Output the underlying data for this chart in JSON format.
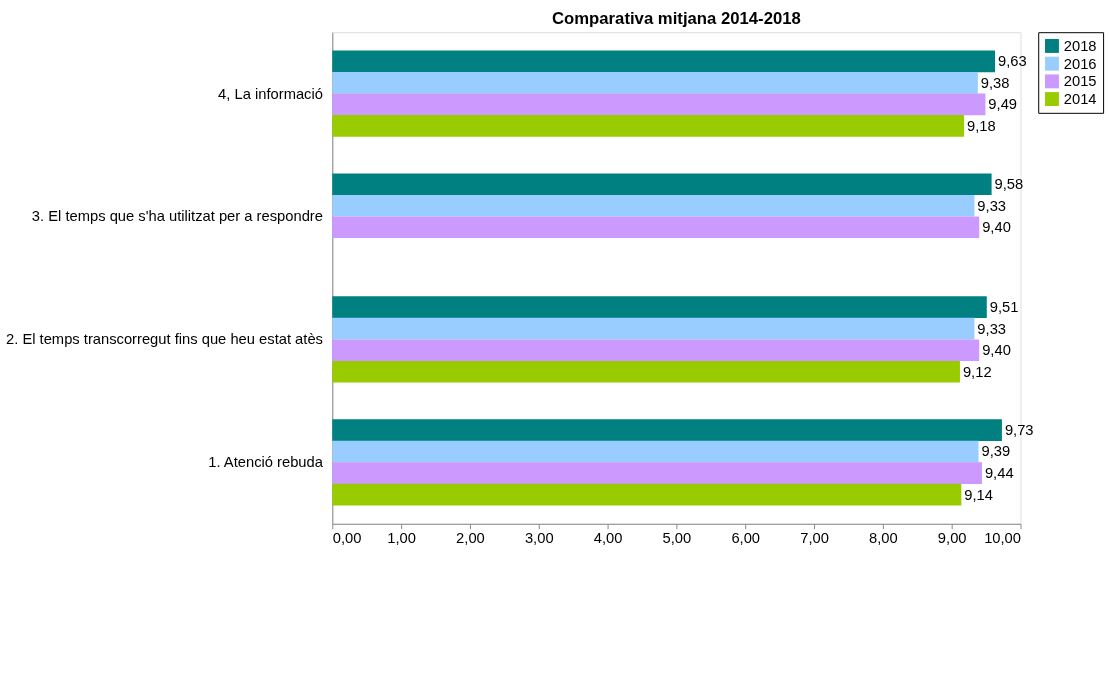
{
  "chart_data": {
    "type": "bar",
    "orientation": "horizontal",
    "title": "Comparativa mitjana 2014-2018",
    "categories": [
      "4, La informació",
      "3. El temps que s'ha utilitzat per a respondre",
      "2. El temps transcorregut fins que heu estat atès",
      "1. Atenció rebuda"
    ],
    "series": [
      {
        "name": "2018",
        "color": "#008080",
        "values": [
          9.63,
          9.58,
          9.51,
          9.73
        ],
        "value_labels": [
          "9,63",
          "9,58",
          "9,51",
          "9,73"
        ]
      },
      {
        "name": "2016",
        "color": "#99ccff",
        "values": [
          9.38,
          9.33,
          9.33,
          9.39
        ],
        "value_labels": [
          "9,38",
          "9,33",
          "9,33",
          "9,39"
        ]
      },
      {
        "name": "2015",
        "color": "#cc99ff",
        "values": [
          9.49,
          9.4,
          9.4,
          9.44
        ],
        "value_labels": [
          "9,49",
          "9,40",
          "9,40",
          "9,44"
        ]
      },
      {
        "name": "2014",
        "color": "#99cc00",
        "values": [
          9.18,
          null,
          9.12,
          9.14
        ],
        "value_labels": [
          "9,18",
          null,
          "9,12",
          "9,14"
        ]
      }
    ],
    "xlim": [
      0,
      10
    ],
    "xticks": [
      {
        "value": 0,
        "label": "0,00"
      },
      {
        "value": 1,
        "label": "1,00"
      },
      {
        "value": 2,
        "label": "2,00"
      },
      {
        "value": 3,
        "label": "3,00"
      },
      {
        "value": 4,
        "label": "4,00"
      },
      {
        "value": 5,
        "label": "5,00"
      },
      {
        "value": 6,
        "label": "6,00"
      },
      {
        "value": 7,
        "label": "7,00"
      },
      {
        "value": 8,
        "label": "8,00"
      },
      {
        "value": 9,
        "label": "9,00"
      },
      {
        "value": 10,
        "label": "10,00"
      }
    ],
    "grid": false,
    "legend": "right"
  }
}
